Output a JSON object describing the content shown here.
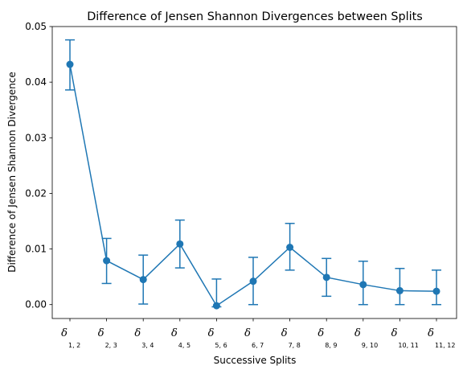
{
  "chart_data": {
    "type": "line",
    "title": "Difference of Jensen Shannon Divergences between Splits",
    "xlabel": "Successive Splits",
    "ylabel": "Difference of Jensen Shannon Divergence",
    "ylim": [
      -0.0025,
      0.05
    ],
    "yticks": [
      "0.00",
      "0.01",
      "0.02",
      "0.03",
      "0.04",
      "0.05"
    ],
    "ytick_values": [
      0.0,
      0.01,
      0.02,
      0.03,
      0.04,
      0.05
    ],
    "categories": [
      {
        "symbol": "δ",
        "sub": "1, 2"
      },
      {
        "symbol": "δ",
        "sub": "2, 3"
      },
      {
        "symbol": "δ",
        "sub": "3, 4"
      },
      {
        "symbol": "δ",
        "sub": "4, 5"
      },
      {
        "symbol": "δ",
        "sub": "5, 6"
      },
      {
        "symbol": "δ",
        "sub": "6, 7"
      },
      {
        "symbol": "δ",
        "sub": "7, 8"
      },
      {
        "symbol": "δ",
        "sub": "8, 9"
      },
      {
        "symbol": "δ",
        "sub": "9, 10"
      },
      {
        "symbol": "δ",
        "sub": "10, 11"
      },
      {
        "symbol": "δ",
        "sub": "11, 12"
      }
    ],
    "values": [
      0.0432,
      0.0079,
      0.0045,
      0.0109,
      -0.0002,
      0.0042,
      0.0103,
      0.0049,
      0.0036,
      0.0025,
      0.0024
    ],
    "err_low": [
      0.0386,
      0.0038,
      0.0001,
      0.0066,
      -0.0004,
      0.0,
      0.0062,
      0.0015,
      0.0,
      0.0,
      0.0
    ],
    "err_high": [
      0.0476,
      0.0119,
      0.0089,
      0.0152,
      0.0046,
      0.0085,
      0.0146,
      0.0083,
      0.0078,
      0.0065,
      0.0062
    ],
    "color": "#1f77b4",
    "grid": false
  }
}
